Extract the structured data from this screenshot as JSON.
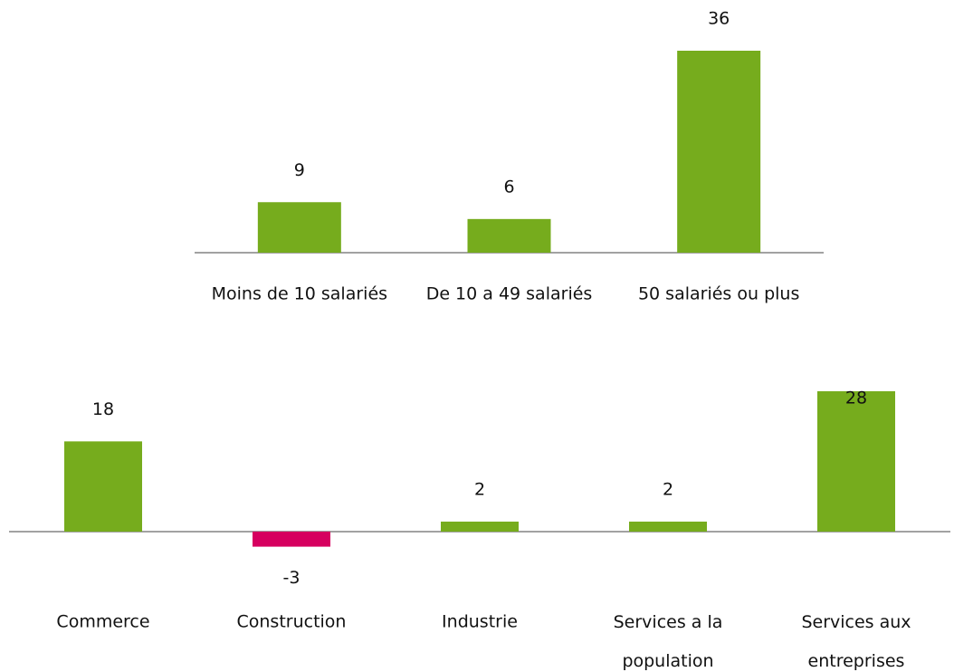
{
  "chart_data": [
    {
      "type": "bar",
      "categories": [
        "Moins de 10 salariés",
        "De 10 a 49 salariés",
        "50 salariés ou plus"
      ],
      "values": [
        9,
        6,
        36
      ],
      "color": "#76ac1d",
      "negative_color": "#d6005f"
    },
    {
      "type": "bar",
      "categories": [
        "Commerce",
        "Construction",
        "Industrie",
        "Services a la population",
        "Services aux entreprises"
      ],
      "values": [
        18,
        -3,
        2,
        2,
        28
      ],
      "color": "#76ac1d",
      "negative_color": "#d6005f"
    }
  ]
}
